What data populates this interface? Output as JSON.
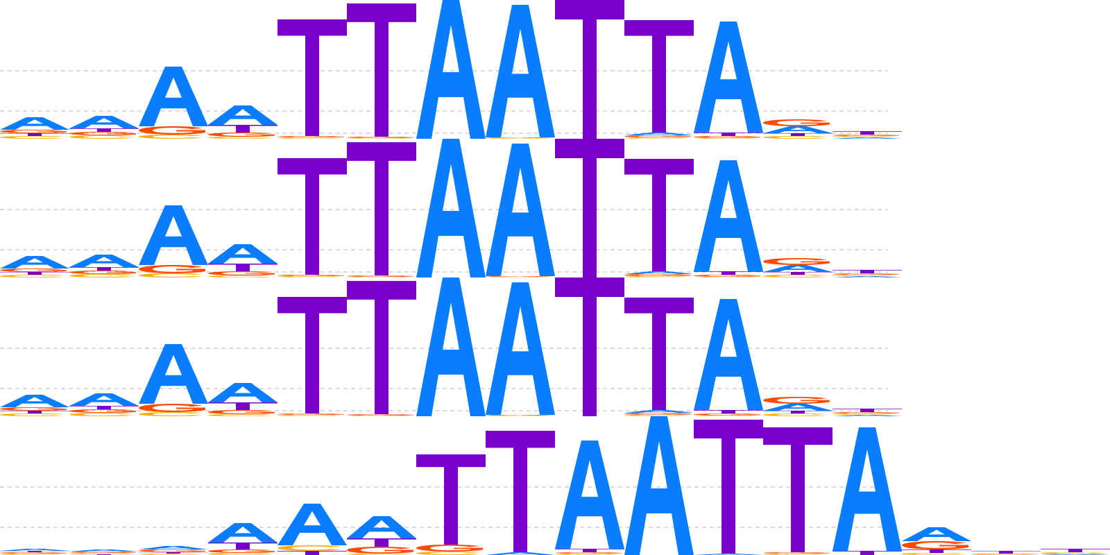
{
  "colors": {
    "A": "#0a7dfc",
    "C": "#ffad00",
    "G": "#ff4a00",
    "T": "#7b00cc",
    "grid": "#b4b4b4"
  },
  "chart_data": [
    {
      "type": "sequence_logo",
      "grid": true,
      "ylim": [
        0,
        2
      ],
      "gridlines": [
        0.08,
        0.4,
        0.98
      ],
      "positions": [
        {
          "A": 0.18,
          "C": 0.04,
          "G": 0.05,
          "T": 0.04
        },
        {
          "A": 0.18,
          "C": 0.05,
          "G": 0.05,
          "T": 0.05
        },
        {
          "A": 0.86,
          "C": 0.06,
          "G": 0.12,
          "T": 0.0
        },
        {
          "A": 0.28,
          "C": 0.03,
          "G": 0.06,
          "T": 0.11
        },
        {
          "A": 0.0,
          "C": 0.02,
          "G": 0.02,
          "T": 1.68
        },
        {
          "A": 0.0,
          "C": 0.01,
          "G": 0.02,
          "T": 1.92
        },
        {
          "A": 2.0,
          "C": 0.0,
          "G": 0.0,
          "T": 0.0
        },
        {
          "A": 1.91,
          "C": 0.01,
          "G": 0.01,
          "T": 0.0
        },
        {
          "A": 0.0,
          "C": 0.0,
          "G": 0.0,
          "T": 2.0
        },
        {
          "A": 0.04,
          "C": 0.02,
          "G": 0.03,
          "T": 1.62
        },
        {
          "A": 1.6,
          "C": 0.01,
          "G": 0.03,
          "T": 0.05
        },
        {
          "A": 0.1,
          "C": 0.04,
          "G": 0.1,
          "T": 0.04
        },
        {
          "A": 0.02,
          "C": 0.02,
          "G": 0.02,
          "T": 0.05
        }
      ]
    },
    {
      "type": "sequence_logo",
      "grid": true,
      "ylim": [
        0,
        2
      ],
      "gridlines": [
        0.08,
        0.4,
        0.98
      ],
      "positions": [
        {
          "A": 0.18,
          "C": 0.04,
          "G": 0.05,
          "T": 0.04
        },
        {
          "A": 0.18,
          "C": 0.05,
          "G": 0.05,
          "T": 0.05
        },
        {
          "A": 0.86,
          "C": 0.06,
          "G": 0.12,
          "T": 0.0
        },
        {
          "A": 0.28,
          "C": 0.03,
          "G": 0.06,
          "T": 0.11
        },
        {
          "A": 0.0,
          "C": 0.02,
          "G": 0.02,
          "T": 1.68
        },
        {
          "A": 0.0,
          "C": 0.01,
          "G": 0.02,
          "T": 1.92
        },
        {
          "A": 2.0,
          "C": 0.0,
          "G": 0.0,
          "T": 0.0
        },
        {
          "A": 1.91,
          "C": 0.01,
          "G": 0.01,
          "T": 0.0
        },
        {
          "A": 0.0,
          "C": 0.0,
          "G": 0.0,
          "T": 2.0
        },
        {
          "A": 0.04,
          "C": 0.02,
          "G": 0.03,
          "T": 1.62
        },
        {
          "A": 1.6,
          "C": 0.01,
          "G": 0.03,
          "T": 0.05
        },
        {
          "A": 0.1,
          "C": 0.04,
          "G": 0.1,
          "T": 0.04
        },
        {
          "A": 0.02,
          "C": 0.02,
          "G": 0.02,
          "T": 0.05
        }
      ]
    },
    {
      "type": "sequence_logo",
      "grid": true,
      "ylim": [
        0,
        2
      ],
      "gridlines": [
        0.08,
        0.4,
        0.98
      ],
      "positions": [
        {
          "A": 0.18,
          "C": 0.04,
          "G": 0.05,
          "T": 0.04
        },
        {
          "A": 0.18,
          "C": 0.05,
          "G": 0.05,
          "T": 0.05
        },
        {
          "A": 0.86,
          "C": 0.06,
          "G": 0.12,
          "T": 0.0
        },
        {
          "A": 0.28,
          "C": 0.03,
          "G": 0.06,
          "T": 0.11
        },
        {
          "A": 0.0,
          "C": 0.02,
          "G": 0.02,
          "T": 1.68
        },
        {
          "A": 0.0,
          "C": 0.01,
          "G": 0.02,
          "T": 1.92
        },
        {
          "A": 2.0,
          "C": 0.0,
          "G": 0.0,
          "T": 0.0
        },
        {
          "A": 1.91,
          "C": 0.01,
          "G": 0.01,
          "T": 0.0
        },
        {
          "A": 0.0,
          "C": 0.0,
          "G": 0.0,
          "T": 2.0
        },
        {
          "A": 0.04,
          "C": 0.02,
          "G": 0.03,
          "T": 1.62
        },
        {
          "A": 1.6,
          "C": 0.01,
          "G": 0.03,
          "T": 0.05
        },
        {
          "A": 0.1,
          "C": 0.04,
          "G": 0.1,
          "T": 0.04
        },
        {
          "A": 0.02,
          "C": 0.02,
          "G": 0.02,
          "T": 0.05
        }
      ]
    },
    {
      "type": "sequence_logo",
      "grid": true,
      "ylim": [
        0,
        2
      ],
      "gridlines": [
        0.4,
        0.98
      ],
      "positions": [
        {
          "A": 0.03,
          "C": 0.02,
          "G": 0.02,
          "T": 0.02
        },
        {
          "A": 0.03,
          "C": 0.02,
          "G": 0.02,
          "T": 0.01
        },
        {
          "A": 0.05,
          "C": 0.02,
          "G": 0.04,
          "T": 0.02
        },
        {
          "A": 0.28,
          "C": 0.03,
          "G": 0.05,
          "T": 0.1
        },
        {
          "A": 0.6,
          "C": 0.08,
          "G": 0.0,
          "T": 0.06
        },
        {
          "A": 0.32,
          "C": 0.02,
          "G": 0.1,
          "T": 0.12
        },
        {
          "A": 0.0,
          "C": 0.05,
          "G": 0.1,
          "T": 1.3
        },
        {
          "A": 0.04,
          "C": 0.0,
          "G": 0.0,
          "T": 1.75
        },
        {
          "A": 1.56,
          "C": 0.02,
          "G": 0.02,
          "T": 0.05
        },
        {
          "A": 2.0,
          "C": 0.0,
          "G": 0.0,
          "T": 0.0
        },
        {
          "A": 0.02,
          "C": 0.0,
          "G": 0.0,
          "T": 1.93
        },
        {
          "A": 0.0,
          "C": 0.02,
          "G": 0.02,
          "T": 1.8
        },
        {
          "A": 1.78,
          "C": 0.0,
          "G": 0.0,
          "T": 0.06
        },
        {
          "A": 0.2,
          "C": 0.03,
          "G": 0.12,
          "T": 0.05
        },
        {
          "A": 0.0,
          "C": 0.01,
          "G": 0.01,
          "T": 0.04
        },
        {
          "A": 0.01,
          "C": 0.02,
          "G": 0.01,
          "T": 0.05
        }
      ]
    }
  ]
}
